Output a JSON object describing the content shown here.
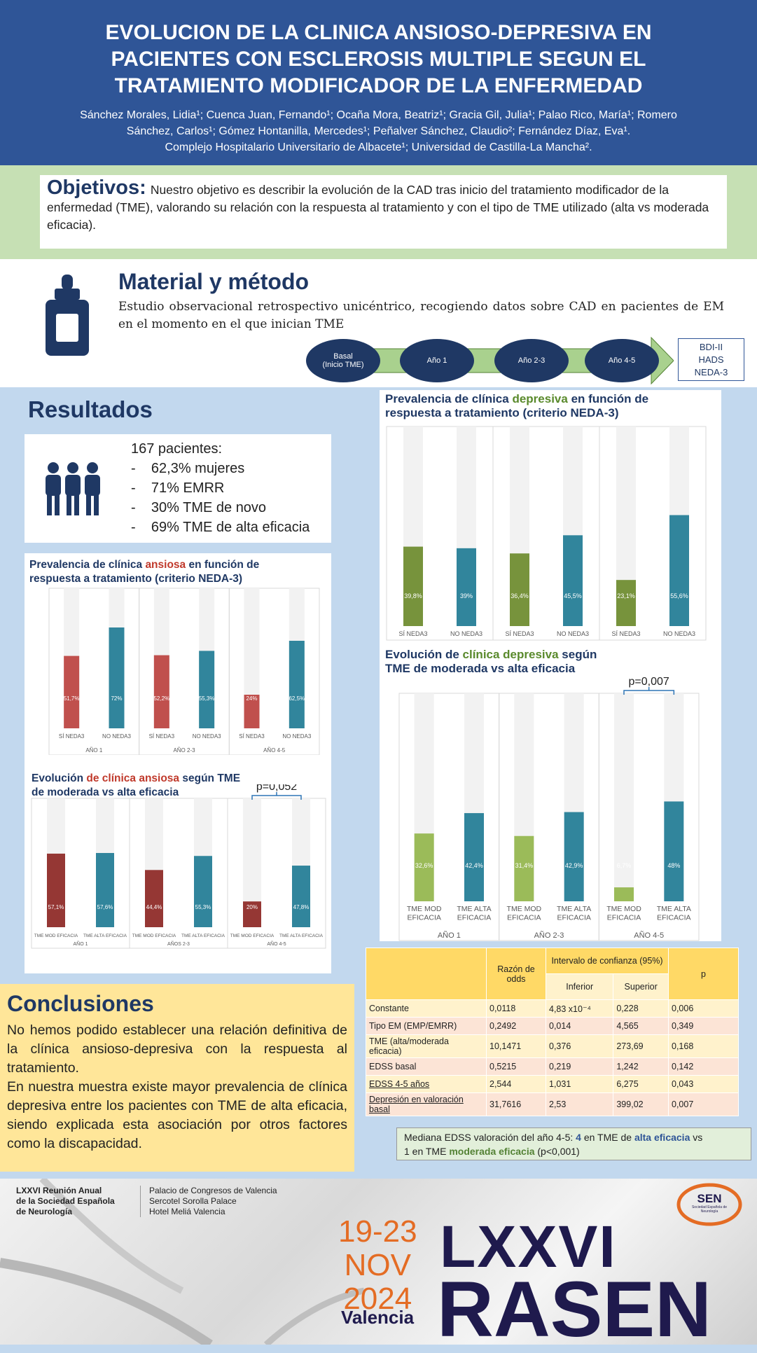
{
  "header": {
    "title": "EVOLUCION DE LA CLINICA ANSIOSO-DEPRESIVA EN\nPACIENTES CON ESCLEROSIS MULTIPLE SEGUN EL\nTRATAMIENTO MODIFICADOR DE LA ENFERMEDAD",
    "authors": "Sánchez Morales, Lidia¹; Cuenca Juan, Fernando¹; Ocaña Mora, Beatriz¹; Gracia Gil, Julia¹; Palao Rico, María¹; Romero\nSánchez, Carlos¹; Gómez Hontanilla, Mercedes¹; Peñalver Sánchez, Claudio²; Fernández Díaz, Eva¹.\nComplejo Hospitalario Universitario de Albacete¹; Universidad de Castilla-La Mancha²."
  },
  "objectives": {
    "label": "Objetivos:",
    "text": "Nuestro objetivo es describir la evolución de la CAD tras inicio del tratamiento modificador de la enfermedad (TME), valorando su relación con la respuesta al tratamiento y con el tipo de TME utilizado (alta vs moderada eficacia)."
  },
  "method": {
    "title": "Material y método",
    "text": "Estudio observacional retrospectivo unicéntrico, recogiendo datos sobre CAD en pacientes de EM en el momento en el que inician TME",
    "timeline": [
      "Basal\n(Inicio TME)",
      "Año 1",
      "Año 2-3",
      "Año 4-5"
    ],
    "scales": "BDI-II\nHADS\nNEDA-3",
    "icon": "bottle-icon"
  },
  "results": {
    "title": "Resultados",
    "patients_icon": "people-icon",
    "patients": [
      "167 pacientes:",
      "-    62,3% mujeres",
      "-    71% EMRR",
      "-    30% TME de novo",
      "-    69% TME de alta eficacia"
    ]
  },
  "colors": {
    "red": "#c0504d",
    "teal": "#31859c",
    "green": "#77933c",
    "lightgreen": "#9bbb59",
    "darkred": "#953734",
    "track": "#f2f2f2"
  },
  "chart_data": [
    {
      "type": "bar",
      "title_parts": [
        "Prevalencia de clínica ",
        "ansiosa",
        " en función de respuesta a tratamiento (criterio NEDA-3)"
      ],
      "categories": [
        "SÍ NEDA3",
        "NO NEDA3",
        "SÍ NEDA3",
        "NO NEDA3",
        "SÍ NEDA3",
        "NO NEDA3"
      ],
      "groups": [
        "AÑO 1",
        "AÑO 2-3",
        "AÑO 4-5"
      ],
      "values": [
        51.7,
        72,
        52.2,
        55.3,
        24,
        62.5
      ],
      "labels": [
        "51,7%",
        "72%",
        "52,2%",
        "55,3%",
        "24%",
        "62,5%"
      ],
      "ylim": [
        0,
        100
      ]
    },
    {
      "type": "bar",
      "title_parts": [
        "Evolución ",
        "de clínica ansiosa",
        " según TME de moderada vs alta eficacia"
      ],
      "categories": [
        "TME MOD EFICACIA",
        "TME ALTA EFICACIA",
        "TME MOD EFICACIA",
        "TME ALTA EFICACIA",
        "TME MOD EFICACIA",
        "TME ALTA EFICACIA"
      ],
      "groups": [
        "AÑO 1",
        "AÑOS 2-3",
        "AÑO 4-5"
      ],
      "values": [
        57.1,
        57.6,
        44.4,
        55.3,
        20,
        47.8
      ],
      "labels": [
        "57,1%",
        "57,6%",
        "44,4%",
        "55,3%",
        "20%",
        "47,8%"
      ],
      "annotation": "p=0,052",
      "ylim": [
        0,
        100
      ]
    },
    {
      "type": "bar",
      "title_parts": [
        "Prevalencia de clínica ",
        "depresiva",
        " en función de respuesta a tratamiento (criterio NEDA-3)"
      ],
      "categories": [
        "SÍ NEDA3",
        "NO NEDA3",
        "SÍ NEDA3",
        "NO NEDA3",
        "SÍ NEDA3",
        "NO NEDA3"
      ],
      "values": [
        39.8,
        39,
        36.4,
        45.5,
        23.1,
        55.6
      ],
      "labels": [
        "39,8%",
        "39%",
        "36,4%",
        "45,5%",
        "23,1%",
        "55,6%"
      ],
      "ylim": [
        0,
        100
      ]
    },
    {
      "type": "bar",
      "title_parts": [
        "Evolución de ",
        "clínica depresiva",
        " según TME de moderada vs alta eficacia"
      ],
      "categories": [
        "TME MOD EFICACIA",
        "TME ALTA EFICACIA",
        "TME MOD EFICACIA",
        "TME ALTA EFICACIA",
        "TME MOD EFICACIA",
        "TME ALTA EFICACIA"
      ],
      "groups": [
        "AÑO 1",
        "AÑO 2-3",
        "AÑO 4-5"
      ],
      "values": [
        32.6,
        42.4,
        31.4,
        42.9,
        6.7,
        48
      ],
      "labels": [
        "32,6%",
        "42,4%",
        "31,4%",
        "42,9%",
        "6,7%",
        "48%"
      ],
      "annotation": "p=0,007",
      "ylim": [
        0,
        100
      ]
    }
  ],
  "table": {
    "h_odds": "Razón de odds",
    "h_ci": "Intervalo de confianza (95%)",
    "h_inf": "Inferior",
    "h_sup": "Superior",
    "h_p": "p",
    "rows": [
      [
        "Constante",
        "0,0118",
        "4,83 x10⁻⁴",
        "0,228",
        "0,006"
      ],
      [
        "Tipo EM (EMP/EMRR)",
        "0,2492",
        "0,014",
        "4,565",
        "0,349"
      ],
      [
        "TME (alta/moderada eficacia)",
        "10,1471",
        "0,376",
        "273,69",
        "0,168"
      ],
      [
        "EDSS basal",
        "0,5215",
        "0,219",
        "1,242",
        "0,142"
      ],
      [
        "EDSS 4-5 años",
        "2,544",
        "1,031",
        "6,275",
        "0,043"
      ],
      [
        "Depresión en valoración basal",
        "31,7616",
        "2,53",
        "399,02",
        "0,007"
      ]
    ]
  },
  "edss": {
    "t1": "Mediana EDSS valoración del año 4-5: ",
    "v1": "4",
    "t2": " en TME de ",
    "v2": "alta eficacia",
    "t3": " vs",
    "t4": "1 en TME ",
    "v3": "moderada eficacia",
    "t5": " (p<0,001)"
  },
  "conclusions": {
    "title": "Conclusiones",
    "p1": "No hemos podido establecer una relación definitiva de la clínica ansioso-depresiva con la respuesta al tratamiento.",
    "p2": "En nuestra muestra existe mayor prevalencia de clínica depresiva entre los pacientes con TME de alta eficacia, siendo explicada esta asociación por otros factores como la discapacidad."
  },
  "footer": {
    "society": "LXXVI Reunión Anual\nde la Sociedad Española\nde Neurología",
    "venue": "Palacio de Congresos de Valencia\nSercotel Sorolla Palace\nHotel Meliá Valencia",
    "dates": "19-23\nNOV\n2024",
    "city": "Valencia",
    "lxxvi": "LXXVI",
    "rasen": "RASEN",
    "sen": "SEN",
    "sen_sub": "Sociedad Española de Neurología"
  }
}
